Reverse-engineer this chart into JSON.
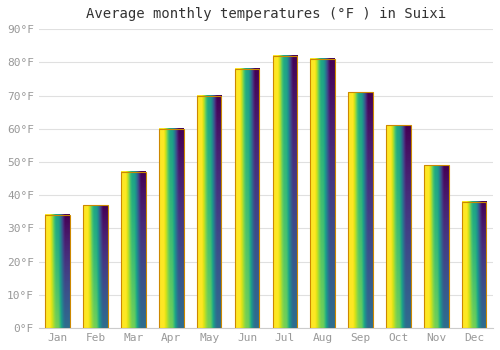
{
  "title": "Average monthly temperatures (°F ) in Suixi",
  "months": [
    "Jan",
    "Feb",
    "Mar",
    "Apr",
    "May",
    "Jun",
    "Jul",
    "Aug",
    "Sep",
    "Oct",
    "Nov",
    "Dec"
  ],
  "values": [
    34,
    37,
    47,
    60,
    70,
    78,
    82,
    81,
    71,
    61,
    49,
    38
  ],
  "bar_color_main": "#FFA500",
  "bar_color_light": "#FFD080",
  "bar_edge_color": "#CC8800",
  "background_color": "#FFFFFF",
  "grid_color": "#E0E0E0",
  "ylim": [
    0,
    90
  ],
  "ytick_step": 10,
  "title_fontsize": 10,
  "tick_fontsize": 8,
  "label_color": "#999999"
}
